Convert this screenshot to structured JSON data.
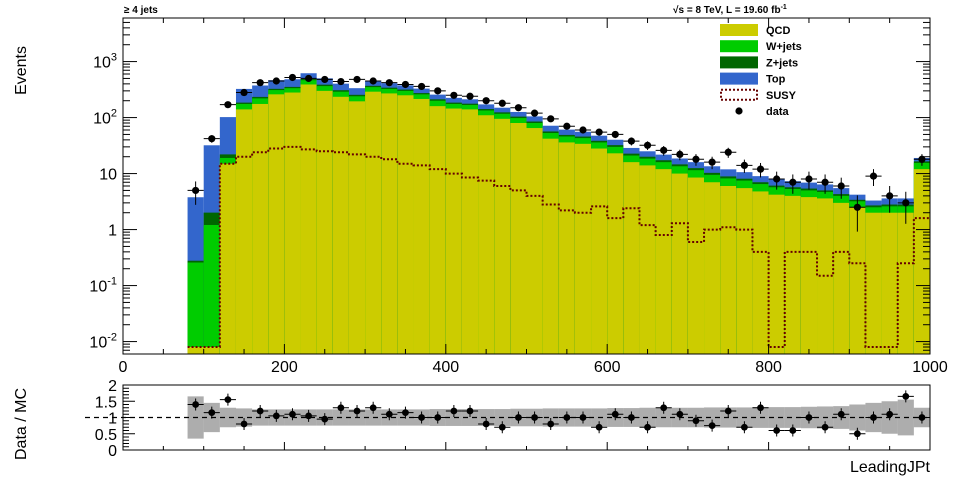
{
  "chart_data": [
    {
      "type": "stacked-histogram",
      "title": "",
      "top_left_label": "≥ 4 jets",
      "top_right_label": "√s = 8 TeV, L = 19.60 fb",
      "top_right_label_superscript": "-1",
      "ylabel": "Events",
      "xlabel": "",
      "yscale": "log",
      "xlim": [
        0,
        1000
      ],
      "ylim": [
        0.006,
        6000
      ],
      "x_ticks": [
        0,
        200,
        400,
        600,
        800,
        1000
      ],
      "x_tick_labels": [
        "0",
        "200",
        "400",
        "600",
        "800",
        "1000"
      ],
      "y_ticks": [
        0.01,
        0.1,
        1,
        10,
        100,
        1000
      ],
      "y_tick_labels": [
        {
          "base": "10",
          "exp": "-2"
        },
        {
          "base": "10",
          "exp": "-1"
        },
        {
          "base": "1",
          "exp": ""
        },
        {
          "base": "10",
          "exp": ""
        },
        {
          "base": "10",
          "exp": "2"
        },
        {
          "base": "10",
          "exp": "3"
        }
      ],
      "legend_position": "top-right",
      "legend": [
        {
          "name": "QCD",
          "style": "fill",
          "color": "#cccc00"
        },
        {
          "name": "W+jets",
          "style": "fill",
          "color": "#00cc00"
        },
        {
          "name": "Z+jets",
          "style": "fill",
          "color": "#006600"
        },
        {
          "name": "Top",
          "style": "fill",
          "color": "#3366cc"
        },
        {
          "name": "SUSY",
          "style": "dashed-outline",
          "color": "#660000"
        },
        {
          "name": "data",
          "style": "marker",
          "color": "#000000"
        }
      ],
      "bin_width": 20,
      "bin_low_edges": [
        80,
        100,
        120,
        140,
        160,
        180,
        200,
        220,
        240,
        260,
        280,
        300,
        320,
        340,
        360,
        380,
        400,
        420,
        440,
        460,
        480,
        500,
        520,
        540,
        560,
        580,
        600,
        620,
        640,
        660,
        680,
        700,
        720,
        740,
        760,
        780,
        800,
        820,
        840,
        860,
        880,
        900,
        920,
        940,
        960,
        980
      ],
      "series": [
        {
          "name": "QCD",
          "values": [
            0.008,
            0.008,
            15,
            140,
            175,
            260,
            280,
            390,
            300,
            235,
            195,
            290,
            270,
            250,
            215,
            160,
            145,
            140,
            110,
            95,
            80,
            65,
            42,
            36,
            34,
            28,
            23,
            16,
            14,
            12,
            10,
            8.5,
            7,
            6,
            5.5,
            4.8,
            4.2,
            4.0,
            3.8,
            3.6,
            3.0,
            2.5,
            2.0,
            2.0,
            2.0,
            12
          ]
        },
        {
          "name": "W+jets",
          "values": [
            0.25,
            1.2,
            4,
            35,
            45,
            50,
            55,
            75,
            65,
            55,
            45,
            60,
            55,
            50,
            45,
            40,
            30,
            28,
            24,
            22,
            18,
            15,
            11,
            10,
            9,
            8,
            7,
            5,
            4.5,
            4,
            3.5,
            3.0,
            2.5,
            2.2,
            2.0,
            1.7,
            1.5,
            1.3,
            1.2,
            1.1,
            1.0,
            0.7,
            0.5,
            0.6,
            0.6,
            3.5
          ]
        },
        {
          "name": "Z+jets",
          "values": [
            0.02,
            0.8,
            3,
            10,
            14,
            16,
            18,
            24,
            22,
            18,
            15,
            19,
            17,
            16,
            14,
            12,
            10,
            9,
            8,
            7,
            6,
            5,
            3.5,
            3.0,
            2.8,
            2.5,
            2.2,
            1.7,
            1.5,
            1.3,
            1.1,
            1.0,
            0.8,
            0.7,
            0.6,
            0.5,
            0.4,
            0.4,
            0.4,
            0.3,
            0.3,
            0.2,
            0.2,
            0.2,
            0.2,
            1.0
          ]
        },
        {
          "name": "Top",
          "values": [
            3.5,
            30,
            80,
            140,
            140,
            140,
            130,
            130,
            115,
            95,
            80,
            85,
            70,
            60,
            55,
            45,
            40,
            35,
            30,
            26,
            22,
            20,
            15,
            12,
            10,
            9,
            8,
            6,
            5,
            4.5,
            4,
            3.5,
            3.2,
            3.0,
            2.5,
            2.0,
            1.8,
            1.6,
            1.5,
            1.4,
            1.2,
            0.8,
            0.6,
            0.8,
            0.8,
            2.5
          ]
        },
        {
          "name": "SUSY",
          "values": [
            0.008,
            0.008,
            15,
            20,
            24,
            28,
            30,
            27,
            25,
            24,
            22,
            20,
            18,
            15,
            14,
            12,
            10,
            8.5,
            7.5,
            6,
            5,
            4,
            2.8,
            2.2,
            2.0,
            2.6,
            1.6,
            2.4,
            1.2,
            0.8,
            1.3,
            0.6,
            1.0,
            1.1,
            1.0,
            0.4,
            0.008,
            0.4,
            0.4,
            0.15,
            0.4,
            0.25,
            0.008,
            0.008,
            0.25,
            1.6
          ]
        }
      ],
      "data_points": {
        "name": "data",
        "x": [
          90,
          110,
          130,
          150,
          170,
          190,
          210,
          230,
          250,
          270,
          290,
          310,
          330,
          350,
          370,
          390,
          410,
          430,
          450,
          470,
          490,
          510,
          530,
          550,
          570,
          590,
          610,
          630,
          650,
          670,
          690,
          710,
          730,
          750,
          770,
          790,
          810,
          830,
          850,
          870,
          890,
          910,
          930,
          950,
          970,
          990
        ],
        "y": [
          5,
          42,
          170,
          280,
          420,
          450,
          520,
          500,
          480,
          440,
          480,
          450,
          420,
          390,
          360,
          300,
          250,
          240,
          200,
          180,
          150,
          120,
          95,
          70,
          60,
          55,
          50,
          38,
          32,
          26,
          22,
          18,
          16,
          24,
          14,
          12,
          8,
          7,
          8,
          7,
          6,
          2.5,
          9,
          4,
          3,
          18
        ]
      }
    },
    {
      "type": "ratio",
      "ylabel": "Data / MC",
      "xlabel": "LeadingJPt",
      "xlim": [
        0,
        1000
      ],
      "ylim": [
        0,
        2
      ],
      "y_ticks": [
        0,
        0.5,
        1,
        1.5,
        2
      ],
      "y_tick_labels": [
        "0",
        "0.5",
        "1",
        "1.5",
        "2"
      ],
      "reference_line": 1,
      "band_x": [
        90,
        110,
        130,
        150,
        170,
        190,
        210,
        230,
        250,
        270,
        290,
        310,
        330,
        350,
        370,
        390,
        410,
        430,
        450,
        470,
        490,
        510,
        530,
        550,
        570,
        590,
        610,
        630,
        650,
        670,
        690,
        710,
        730,
        750,
        770,
        790,
        810,
        830,
        850,
        870,
        890,
        910,
        930,
        950,
        970,
        990
      ],
      "band_halfwidth": [
        0.65,
        0.45,
        0.3,
        0.28,
        0.25,
        0.25,
        0.25,
        0.25,
        0.25,
        0.25,
        0.25,
        0.25,
        0.25,
        0.25,
        0.25,
        0.26,
        0.26,
        0.26,
        0.26,
        0.26,
        0.27,
        0.27,
        0.28,
        0.28,
        0.28,
        0.28,
        0.29,
        0.29,
        0.3,
        0.3,
        0.3,
        0.3,
        0.31,
        0.31,
        0.31,
        0.32,
        0.32,
        0.32,
        0.33,
        0.34,
        0.35,
        0.4,
        0.45,
        0.5,
        0.55,
        0.3
      ],
      "points": {
        "x": [
          90,
          110,
          130,
          150,
          170,
          190,
          210,
          230,
          250,
          270,
          290,
          310,
          330,
          350,
          370,
          390,
          410,
          430,
          450,
          470,
          490,
          510,
          530,
          550,
          570,
          590,
          610,
          630,
          650,
          670,
          690,
          710,
          730,
          750,
          770,
          790,
          810,
          830,
          850,
          870,
          890,
          910,
          930,
          950,
          970,
          990
        ],
        "y": [
          1.4,
          1.15,
          1.55,
          0.8,
          1.2,
          1.05,
          1.1,
          1.05,
          0.95,
          1.3,
          1.2,
          1.3,
          1.1,
          1.15,
          1.0,
          1.0,
          1.2,
          1.2,
          0.8,
          0.7,
          1.0,
          1.0,
          0.8,
          1.0,
          1.0,
          0.7,
          1.1,
          1.0,
          0.7,
          1.3,
          1.1,
          0.9,
          0.75,
          1.2,
          0.7,
          1.3,
          0.6,
          0.6,
          1.0,
          0.7,
          1.1,
          0.5,
          1.0,
          1.1,
          1.65,
          1.0
        ]
      }
    }
  ]
}
